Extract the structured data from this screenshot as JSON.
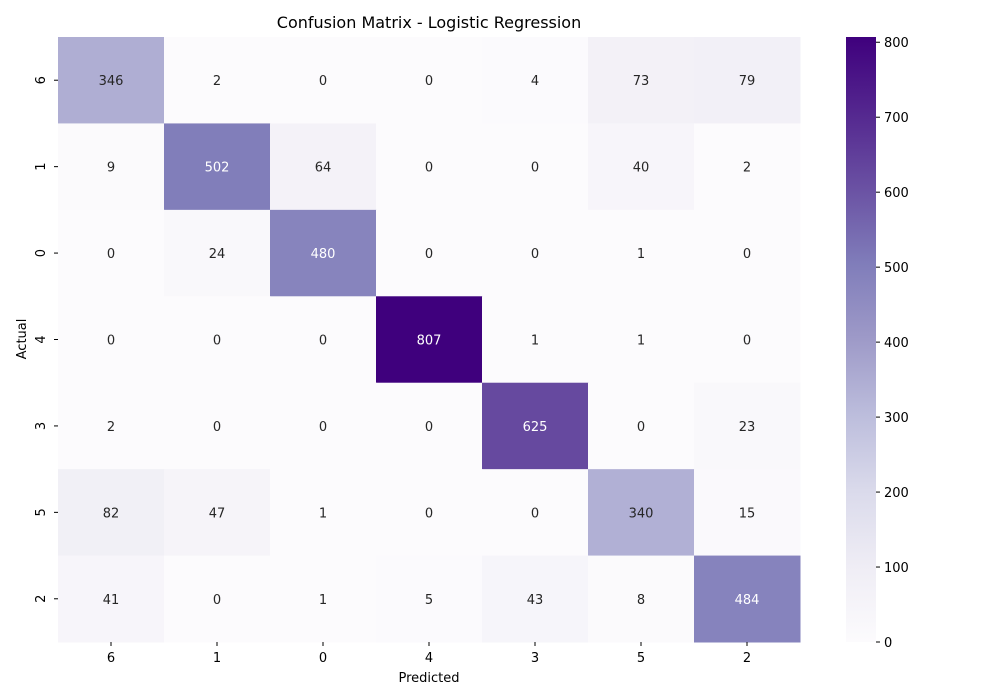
{
  "chart_data": {
    "type": "heatmap",
    "title": "Confusion Matrix - Logistic Regression",
    "xlabel": "Predicted",
    "ylabel": "Actual",
    "x_categories": [
      "6",
      "1",
      "0",
      "4",
      "3",
      "5",
      "2"
    ],
    "y_categories": [
      "6",
      "1",
      "0",
      "4",
      "3",
      "5",
      "2"
    ],
    "values": [
      [
        346,
        2,
        0,
        0,
        4,
        73,
        79
      ],
      [
        9,
        502,
        64,
        0,
        0,
        40,
        2
      ],
      [
        0,
        24,
        480,
        0,
        0,
        1,
        0
      ],
      [
        0,
        0,
        0,
        807,
        1,
        1,
        0
      ],
      [
        2,
        0,
        0,
        0,
        625,
        0,
        23
      ],
      [
        82,
        47,
        1,
        0,
        0,
        340,
        15
      ],
      [
        41,
        0,
        1,
        5,
        43,
        8,
        484
      ]
    ],
    "colormap": "Purples",
    "color_low": "#fcfbfd",
    "color_high": "#3f007d",
    "vmin": 0,
    "vmax": 807,
    "colorbar_ticks": [
      0,
      100,
      200,
      300,
      400,
      500,
      600,
      700,
      800
    ],
    "grid": false,
    "colorbar": "right"
  }
}
